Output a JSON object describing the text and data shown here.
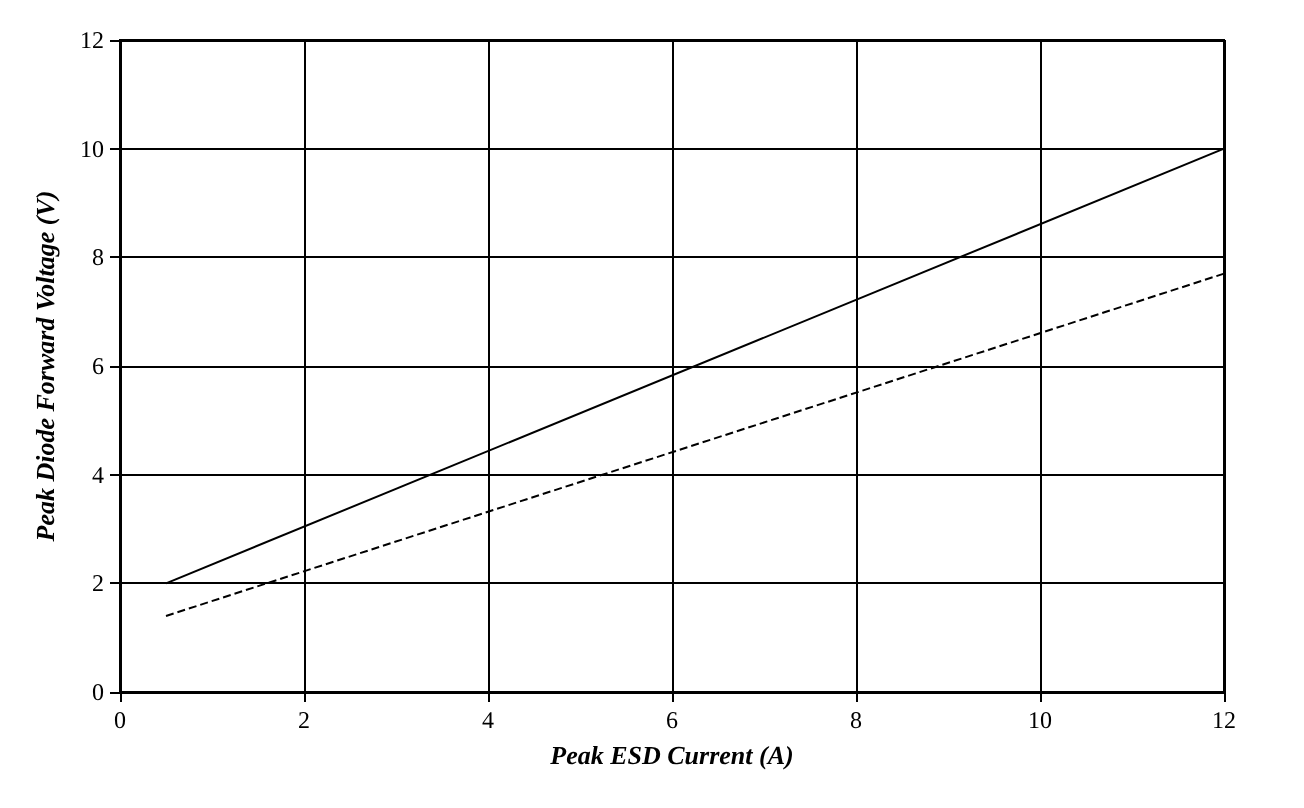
{
  "chart_data": {
    "type": "line",
    "xlabel": "Peak ESD Current (A)",
    "ylabel": "Peak Diode Forward Voltage (V)",
    "x": [
      0.5,
      12
    ],
    "series": [
      {
        "color": "#000000",
        "line_style": "solid",
        "values": [
          2.0,
          10.0
        ]
      },
      {
        "color": "#000000",
        "line_style": "dashed",
        "values": [
          1.4,
          7.7
        ]
      }
    ],
    "xlim": [
      0,
      12
    ],
    "xticks": [
      0,
      2,
      4,
      6,
      8,
      10,
      12
    ],
    "ylim": [
      0,
      12
    ],
    "yticks": [
      0,
      2,
      4,
      6,
      8,
      10,
      12
    ],
    "grid": true,
    "marker": "none"
  }
}
